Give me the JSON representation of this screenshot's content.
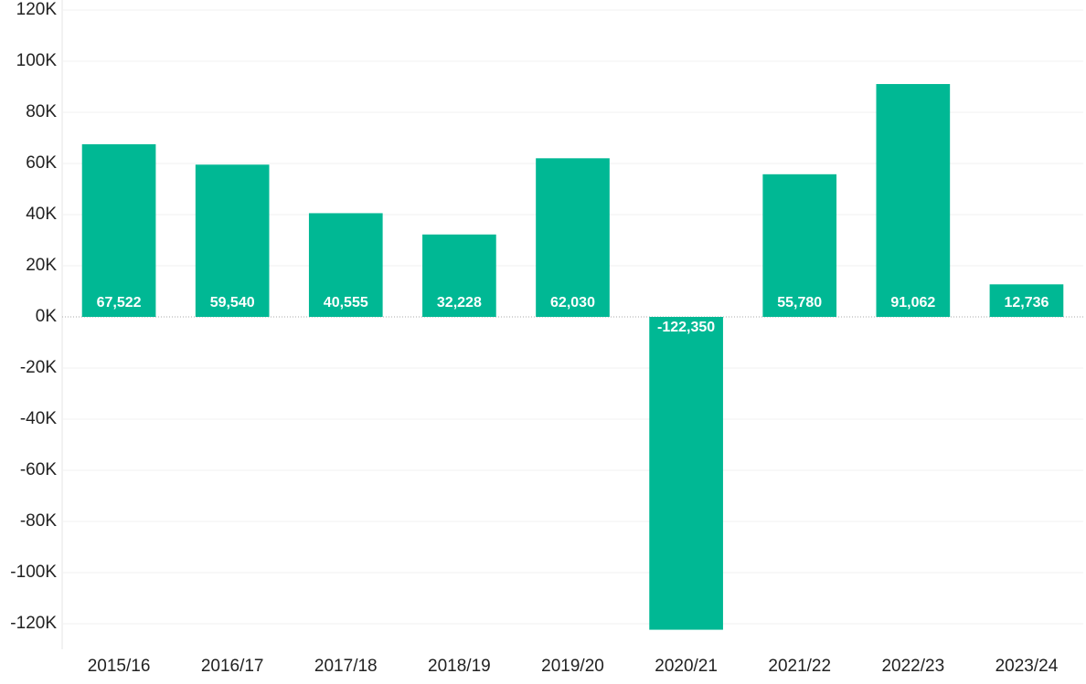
{
  "chart_data": {
    "type": "bar",
    "categories": [
      "2015/16",
      "2016/17",
      "2017/18",
      "2018/19",
      "2019/20",
      "2020/21",
      "2021/22",
      "2022/23",
      "2023/24"
    ],
    "values": [
      67522,
      59540,
      40555,
      32228,
      62030,
      -122350,
      55780,
      91062,
      12736
    ],
    "value_labels": [
      "67,522",
      "59,540",
      "40,555",
      "32,228",
      "62,030",
      "-122,350",
      "55,780",
      "91,062",
      "12,736"
    ],
    "color": "#00b894",
    "ylim": [
      -130000,
      120000
    ],
    "yticks": [
      {
        "value": 120000,
        "label": "120K"
      },
      {
        "value": 100000,
        "label": "100K"
      },
      {
        "value": 80000,
        "label": "80K"
      },
      {
        "value": 60000,
        "label": "60K"
      },
      {
        "value": 40000,
        "label": "40K"
      },
      {
        "value": 20000,
        "label": "20K"
      },
      {
        "value": 0,
        "label": "0K"
      },
      {
        "value": -20000,
        "label": "-20K"
      },
      {
        "value": -40000,
        "label": "-40K"
      },
      {
        "value": -60000,
        "label": "-60K"
      },
      {
        "value": -80000,
        "label": "-80K"
      },
      {
        "value": -100000,
        "label": "-100K"
      },
      {
        "value": -120000,
        "label": "-120K"
      }
    ],
    "grid": true
  }
}
